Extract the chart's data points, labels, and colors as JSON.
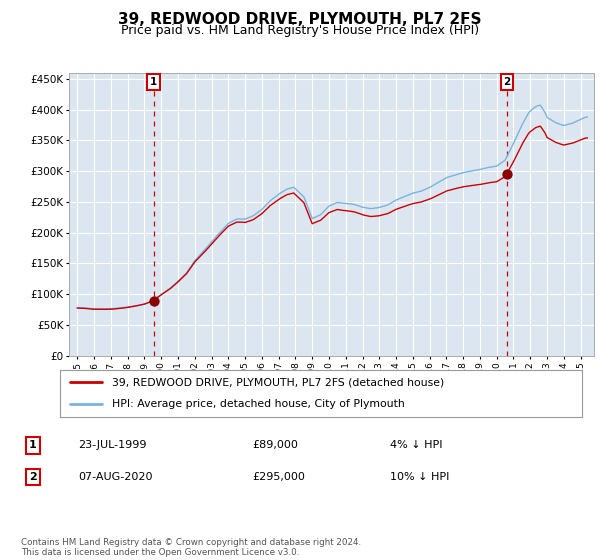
{
  "title": "39, REDWOOD DRIVE, PLYMOUTH, PL7 2FS",
  "subtitle": "Price paid vs. HM Land Registry's House Price Index (HPI)",
  "hpi_label": "HPI: Average price, detached house, City of Plymouth",
  "property_label": "39, REDWOOD DRIVE, PLYMOUTH, PL7 2FS (detached house)",
  "sale1_date": "23-JUL-1999",
  "sale1_price": 89000,
  "sale1_annotation": "4% ↓ HPI",
  "sale2_date": "07-AUG-2020",
  "sale2_price": 295000,
  "sale2_annotation": "10% ↓ HPI",
  "sale1_x": 1999.55,
  "sale2_x": 2020.6,
  "ylim": [
    0,
    460000
  ],
  "xlim_start": 1994.5,
  "xlim_end": 2025.8,
  "ylabel_ticks": [
    0,
    50000,
    100000,
    150000,
    200000,
    250000,
    300000,
    350000,
    400000,
    450000
  ],
  "ylabel_labels": [
    "£0",
    "£50K",
    "£100K",
    "£150K",
    "£200K",
    "£250K",
    "£300K",
    "£350K",
    "£400K",
    "£450K"
  ],
  "xtick_years": [
    1995,
    1996,
    1997,
    1998,
    1999,
    2000,
    2001,
    2002,
    2003,
    2004,
    2005,
    2006,
    2007,
    2008,
    2009,
    2010,
    2011,
    2012,
    2013,
    2014,
    2015,
    2016,
    2017,
    2018,
    2019,
    2020,
    2021,
    2022,
    2023,
    2024,
    2025
  ],
  "hpi_color": "#7ab3e0",
  "property_color": "#cc0000",
  "background_color": "#dce6f1",
  "grid_color": "#ffffff",
  "footnote": "Contains HM Land Registry data © Crown copyright and database right 2024.\nThis data is licensed under the Open Government Licence v3.0.",
  "sale_marker_color": "#880000",
  "dashed_line_color": "#cc0000",
  "title_fontsize": 11,
  "subtitle_fontsize": 9
}
